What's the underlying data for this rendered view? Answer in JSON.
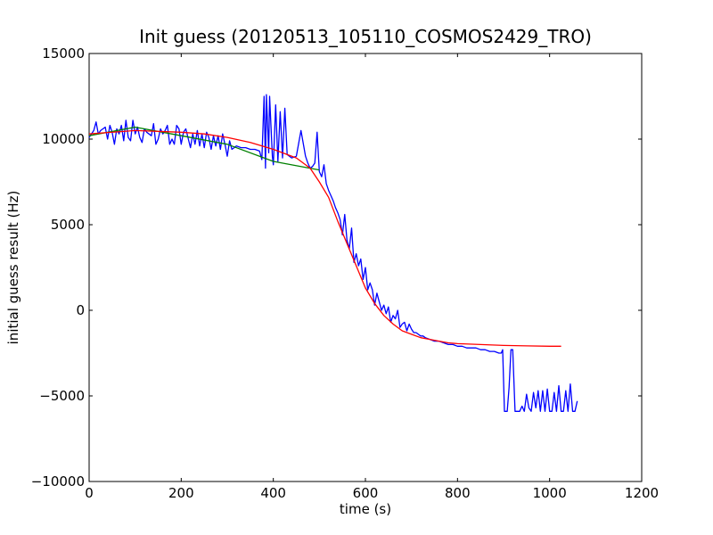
{
  "chart_data": {
    "type": "line",
    "title": "Init guess (20120513_105110_COSMOS2429_TRO)",
    "xlabel": "time (s)",
    "ylabel": "initial guess result (Hz)",
    "xlim": [
      0,
      1200
    ],
    "ylim": [
      -10000,
      15000
    ],
    "xticks": [
      0,
      200,
      400,
      600,
      800,
      1000,
      1200
    ],
    "yticks": [
      -10000,
      -5000,
      0,
      5000,
      10000,
      15000
    ],
    "xtick_labels": [
      "0",
      "200",
      "400",
      "600",
      "800",
      "1000",
      "1200"
    ],
    "ytick_labels": [
      "−10000",
      "−5000",
      "0",
      "5000",
      "10000",
      "15000"
    ],
    "grid": false,
    "series": [
      {
        "color": "#0000ff",
        "x": [
          0,
          10,
          15,
          20,
          25,
          35,
          40,
          45,
          50,
          55,
          60,
          65,
          70,
          75,
          80,
          85,
          90,
          95,
          100,
          105,
          110,
          115,
          120,
          125,
          135,
          140,
          145,
          150,
          155,
          160,
          165,
          170,
          175,
          180,
          185,
          190,
          195,
          200,
          205,
          210,
          220,
          225,
          230,
          235,
          240,
          245,
          250,
          255,
          260,
          265,
          270,
          275,
          280,
          285,
          290,
          295,
          300,
          305,
          310,
          315,
          320,
          330,
          340,
          350,
          360,
          370,
          375,
          380,
          383,
          385,
          390,
          392,
          398,
          400,
          405,
          410,
          415,
          420,
          425,
          430,
          440,
          450,
          460,
          470,
          475,
          480,
          485,
          490,
          495,
          500,
          505,
          510,
          515,
          520,
          525,
          530,
          535,
          540,
          545,
          550,
          555,
          560,
          565,
          570,
          575,
          580,
          585,
          590,
          595,
          600,
          605,
          610,
          615,
          620,
          625,
          630,
          635,
          640,
          645,
          650,
          655,
          660,
          665,
          670,
          675,
          680,
          685,
          690,
          695,
          700,
          705,
          710,
          715,
          720,
          725,
          730,
          740,
          750,
          760,
          770,
          780,
          790,
          800,
          810,
          820,
          830,
          840,
          850,
          860,
          870,
          880,
          890,
          895,
          898,
          902,
          906,
          908,
          912,
          916,
          920,
          925,
          930,
          935,
          940,
          945,
          950,
          955,
          960,
          965,
          970,
          975,
          980,
          985,
          990,
          995,
          1000,
          1005,
          1010,
          1015,
          1020,
          1025,
          1030,
          1035,
          1040,
          1045,
          1050,
          1055,
          1060
        ],
        "y": [
          10100,
          10500,
          11000,
          10300,
          10500,
          10700,
          10000,
          10800,
          10400,
          9700,
          10600,
          10300,
          10800,
          9900,
          11100,
          10100,
          9900,
          11100,
          10300,
          10700,
          10100,
          9800,
          10600,
          10400,
          10200,
          10900,
          9700,
          10000,
          10600,
          10300,
          10500,
          10800,
          9700,
          10000,
          9700,
          10800,
          10600,
          9700,
          10400,
          10600,
          9500,
          10300,
          9700,
          10500,
          9600,
          10300,
          9500,
          10400,
          10100,
          9400,
          10200,
          9600,
          10200,
          9400,
          10300,
          9700,
          9000,
          9900,
          9400,
          9500,
          9600,
          9500,
          9500,
          9400,
          9400,
          9300,
          8800,
          12500,
          8300,
          12600,
          9200,
          12500,
          9000,
          8500,
          12000,
          8700,
          11600,
          8900,
          11800,
          9100,
          8900,
          9000,
          10500,
          9000,
          8600,
          8300,
          8400,
          8600,
          10400,
          8100,
          7800,
          8500,
          7400,
          7000,
          6700,
          6400,
          6000,
          5700,
          5300,
          4400,
          5600,
          4100,
          3600,
          4800,
          2800,
          3300,
          2600,
          3000,
          1800,
          2500,
          1200,
          1600,
          1200,
          300,
          1000,
          500,
          0,
          300,
          -200,
          200,
          -700,
          -300,
          -500,
          0,
          -1000,
          -800,
          -700,
          -1200,
          -800,
          -1100,
          -1300,
          -1300,
          -1400,
          -1500,
          -1500,
          -1600,
          -1700,
          -1800,
          -1800,
          -1900,
          -2000,
          -2000,
          -2100,
          -2100,
          -2200,
          -2200,
          -2200,
          -2300,
          -2300,
          -2400,
          -2400,
          -2500,
          -2500,
          -2300,
          -5900,
          -5900,
          -5900,
          -4500,
          -2300,
          -2300,
          -5900,
          -5900,
          -5900,
          -5600,
          -5900,
          -4900,
          -5700,
          -5900,
          -4800,
          -5700,
          -4700,
          -5900,
          -4700,
          -5900,
          -4600,
          -5900,
          -5900,
          -4800,
          -5900,
          -4400,
          -5900,
          -5900,
          -4700,
          -5900,
          -4300,
          -5900,
          -5900,
          -5300
        ]
      },
      {
        "color": "#008000",
        "x": [
          0,
          100,
          200,
          300,
          400,
          500
        ],
        "y": [
          10200,
          10700,
          10200,
          9700,
          8700,
          8200
        ]
      },
      {
        "color": "#ff0000",
        "x": [
          0,
          100,
          200,
          250,
          300,
          350,
          400,
          450,
          480,
          500,
          520,
          540,
          560,
          580,
          600,
          620,
          640,
          660,
          680,
          700,
          720,
          740,
          760,
          780,
          800,
          850,
          900,
          950,
          1000,
          1025
        ],
        "y": [
          10300,
          10500,
          10400,
          10300,
          10100,
          9800,
          9400,
          8900,
          8300,
          7500,
          6600,
          5200,
          3900,
          2600,
          1300,
          400,
          -300,
          -800,
          -1200,
          -1400,
          -1600,
          -1700,
          -1800,
          -1900,
          -1950,
          -2000,
          -2050,
          -2080,
          -2100,
          -2100
        ]
      }
    ]
  }
}
